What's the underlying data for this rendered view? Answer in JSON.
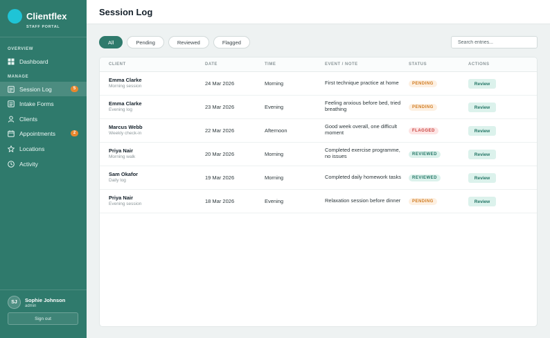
{
  "brand": {
    "name": "Clientflex",
    "subtitle": "STAFF PORTAL"
  },
  "sidebar": {
    "overview_label": "OVERVIEW",
    "manage_label": "MANAGE",
    "items": [
      {
        "label": "Dashboard",
        "icon": "grid-icon"
      },
      {
        "label": "Session Log",
        "icon": "log-icon",
        "badge": "5",
        "active": true
      },
      {
        "label": "Intake Forms",
        "icon": "form-icon"
      },
      {
        "label": "Clients",
        "icon": "person-icon"
      },
      {
        "label": "Appointments",
        "icon": "calendar-icon",
        "badge": "2"
      },
      {
        "label": "Locations",
        "icon": "star-icon"
      },
      {
        "label": "Activity",
        "icon": "clock-icon"
      }
    ],
    "user": {
      "initials": "SJ",
      "name": "Sophie Johnson",
      "role": "admin"
    },
    "signout_label": "Sign out"
  },
  "header": {
    "title": "Session Log"
  },
  "filters": [
    "All",
    "Pending",
    "Reviewed",
    "Flagged"
  ],
  "search": {
    "placeholder": "Search entries..."
  },
  "table": {
    "columns": [
      "CLIENT",
      "DATE",
      "TIME",
      "EVENT / NOTE",
      "STATUS",
      "ACTIONS"
    ],
    "rows": [
      {
        "client": "Emma Clarke",
        "sub": "Morning session",
        "date": "24 Mar 2026",
        "time": "Morning",
        "note": "First technique practice at home",
        "status": "PENDING",
        "action": "Review"
      },
      {
        "client": "Emma Clarke",
        "sub": "Evening log",
        "date": "23 Mar 2026",
        "time": "Evening",
        "note": "Feeling anxious before bed, tried breathing",
        "status": "PENDING",
        "action": "Review"
      },
      {
        "client": "Marcus Webb",
        "sub": "Weekly check-in",
        "date": "22 Mar 2026",
        "time": "Afternoon",
        "note": "Good week overall, one difficult moment",
        "status": "FLAGGED",
        "action": "Review"
      },
      {
        "client": "Priya Nair",
        "sub": "Morning walk",
        "date": "20 Mar 2026",
        "time": "Morning",
        "note": "Completed exercise programme, no issues",
        "status": "REVIEWED",
        "action": "Review"
      },
      {
        "client": "Sam Okafor",
        "sub": "Daily log",
        "date": "19 Mar 2026",
        "time": "Morning",
        "note": "Completed daily homework tasks",
        "status": "REVIEWED",
        "action": "Review"
      },
      {
        "client": "Priya Nair",
        "sub": "Evening session",
        "date": "18 Mar 2026",
        "time": "Evening",
        "note": "Relaxation session before dinner",
        "status": "PENDING",
        "action": "Review"
      }
    ]
  },
  "colors": {
    "sidebar": "#2f7a6c",
    "accent": "#1fc4d6",
    "badge": "#e8872e"
  }
}
